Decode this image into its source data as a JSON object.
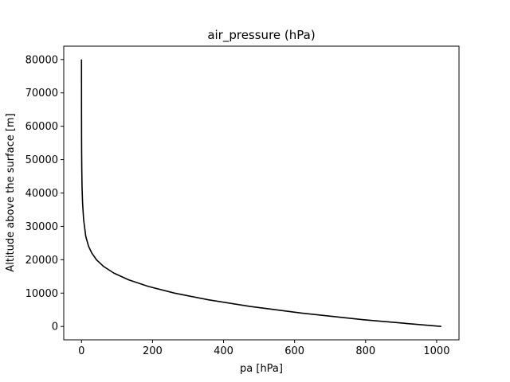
{
  "chart_data": {
    "type": "line",
    "title": "air_pressure (hPa)",
    "xlabel": "pa [hPa]",
    "ylabel": "Altitude above the surface [m]",
    "xlim": [
      -50,
      1063
    ],
    "ylim": [
      -4000,
      84000
    ],
    "xticks": [
      0,
      200,
      400,
      600,
      800,
      1000
    ],
    "yticks": [
      0,
      10000,
      20000,
      30000,
      40000,
      50000,
      60000,
      70000,
      80000
    ],
    "grid": false,
    "legend": "none",
    "line_color": "#000000",
    "series": [
      {
        "x": [
          1013.25,
          795,
          620,
          475,
          357,
          262,
          188,
          132,
          91,
          62,
          42,
          29,
          20,
          12,
          6,
          3,
          1.5,
          0.8,
          0.4,
          0.2,
          0.1,
          0.05,
          0.03,
          0.02,
          0.01
        ],
        "y": [
          0,
          2000,
          4000,
          6000,
          8000,
          10000,
          12000,
          14000,
          16000,
          18000,
          20000,
          22000,
          24000,
          27000,
          32000,
          37000,
          42000,
          47000,
          52000,
          57000,
          62000,
          67000,
          72000,
          76000,
          80000
        ]
      }
    ]
  }
}
